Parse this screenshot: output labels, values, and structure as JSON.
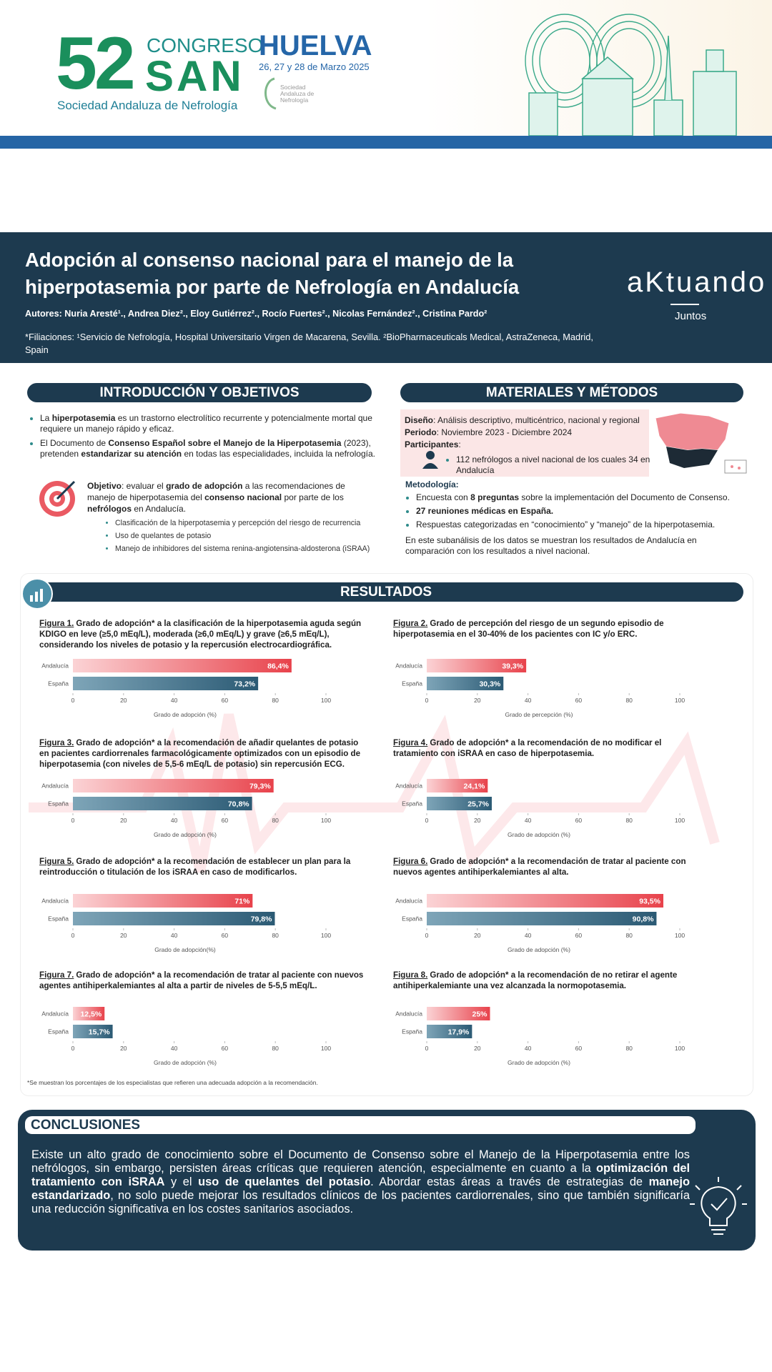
{
  "header": {
    "congress_number": "52",
    "congress_word": "CONGRESO",
    "org": "SAN",
    "org_full": "Sociedad Andaluza de Nefrología",
    "city": "HUELVA",
    "dates": "26, 27 y 28 de Marzo 2025",
    "small_logo": "Sociedad Andaluza de Nefrología"
  },
  "title_block": {
    "title": "Adopción al consenso nacional para el manejo de la hiperpotasemia por parte de Nefrología en Andalucía",
    "authors": "Autores: Nuria Aresté¹., Andrea Diez²., Eloy Gutiérrez²., Rocío Fuertes²., Nicolas Fernández²., Cristina Pardo²",
    "affiliations": "*Filiaciones: ¹Servicio de Nefrología, Hospital Universitario Virgen de Macarena, Sevilla. ²BioPharmaceuticals Medical, AstraZeneca, Madrid, Spain",
    "brand": "aKtuando",
    "brand_sub": "Juntos"
  },
  "intro": {
    "heading": "INTRODUCCIÓN Y OBJETIVOS",
    "bullets": [
      [
        "La ",
        {
          "b": "hiperpotasemia"
        },
        " es un trastorno electrolítico recurrente y potencialmente mortal que requiere un manejo rápido y eficaz."
      ],
      [
        "El Documento de ",
        {
          "b": "Consenso Español sobre el Manejo de la Hiperpotasemia"
        },
        " (2023), pretenden ",
        {
          "b": "estandarizar su atención"
        },
        " en todas las especialidades, incluida la nefrología."
      ]
    ],
    "objective": [
      {
        "b": "Objetivo"
      },
      ": evaluar el ",
      {
        "b": "grado de adopción"
      },
      " a las recomendaciones de manejo de hiperpotasemia del ",
      {
        "b": "consenso nacional"
      },
      " por parte de los ",
      {
        "b": "nefrólogos"
      },
      " en Andalucía."
    ],
    "sub_bullets": [
      "Clasificación de la hiperpotasemia y percepción del riesgo de recurrencia",
      "Uso de quelantes de potasio",
      "Manejo de inhibidores del sistema renina-angiotensina-aldosterona (iSRAA)"
    ]
  },
  "methods": {
    "heading": "MATERIALES Y MÉTODOS",
    "design": [
      {
        "b": "Diseño"
      },
      ": Análisis descriptivo, multicéntrico, nacional y regional"
    ],
    "period": [
      {
        "b": "Periodo"
      },
      ": Noviembre 2023 - Diciembre 2024"
    ],
    "participants": [
      {
        "b": "Participantes"
      },
      ":"
    ],
    "participants_detail": "112 nefrólogos a nivel nacional de los cuales 34 en Andalucía",
    "methodology_heading": "Metodología:",
    "methodology": [
      [
        "Encuesta con ",
        {
          "b": "8 preguntas"
        },
        " sobre la implementación del Documento de Consenso."
      ],
      [
        {
          "b": "27 reuniones médicas en España."
        }
      ],
      [
        "Respuestas categorizadas en “conocimiento” y “manejo” de la hiperpotasemia."
      ]
    ],
    "closing": "En este subanálisis de los datos se muestran los resultados de Andalucía en comparación con los resultados a nivel nacional."
  },
  "results": {
    "heading": "RESULTADOS",
    "footnote": "*Se muestran los porcentajes de los especialistas que refieren una adecuada adopción a la recomendación."
  },
  "figures": [
    {
      "label": "Figura 1.",
      "caption": "Grado de adopción* a la clasificación de la hiperpotasemia aguda según KDIGO en leve (≥5,0 mEq/L), moderada (≥6,0 mEq/L) y grave (≥6,5 mEq/L), considerando los niveles de potasio y la repercusión electrocardiográfica.",
      "chart": {
        "type": "bar",
        "categories": [
          "Andalucía",
          "España"
        ],
        "values": [
          86.4,
          73.2
        ],
        "value_labels": [
          "86,4%",
          "73,2%"
        ],
        "xlim": [
          0,
          100
        ],
        "xticks": [
          0,
          20,
          40,
          60,
          80,
          100
        ],
        "xlabel": "Grado de adopción (%)"
      }
    },
    {
      "label": "Figura 2.",
      "caption": "Grado de percepción del riesgo de un segundo episodio de hiperpotasemia en el 30-40% de los pacientes con IC y/o ERC.",
      "chart": {
        "type": "bar",
        "categories": [
          "Andalucía",
          "España"
        ],
        "values": [
          39.3,
          30.3
        ],
        "value_labels": [
          "39,3%",
          "30,3%"
        ],
        "xlim": [
          0,
          100
        ],
        "xticks": [
          0,
          20,
          40,
          60,
          80,
          100
        ],
        "xlabel": "Grado de percepción (%)"
      }
    },
    {
      "label": "Figura 3.",
      "caption": "Grado de adopción* a la recomendación de añadir quelantes de potasio en pacientes cardiorrenales farmacológicamente optimizados con un episodio de hiperpotasemia (con niveles de 5,5-6 mEq/L de potasio) sin repercusión ECG.",
      "chart": {
        "type": "bar",
        "categories": [
          "Andalucía",
          "España"
        ],
        "values": [
          79.3,
          70.8
        ],
        "value_labels": [
          "79,3%",
          "70,8%"
        ],
        "xlim": [
          0,
          100
        ],
        "xticks": [
          0,
          20,
          40,
          60,
          80,
          100
        ],
        "xlabel": "Grado de adopción (%)"
      }
    },
    {
      "label": "Figura 4.",
      "caption": "Grado de adopción* a la recomendación de no modificar el tratamiento con iSRAA en caso de hiperpotasemia.",
      "chart": {
        "type": "bar",
        "categories": [
          "Andalucía",
          "España"
        ],
        "values": [
          24.1,
          25.7
        ],
        "value_labels": [
          "24,1%",
          "25,7%"
        ],
        "xlim": [
          0,
          100
        ],
        "xticks": [
          0,
          20,
          40,
          60,
          80,
          100
        ],
        "xlabel": "Grado de adopción (%)"
      }
    },
    {
      "label": "Figura 5.",
      "caption": "Grado de adopción* a la recomendación de establecer un plan para la reintroducción o titulación de los iSRAA en caso de modificarlos.",
      "chart": {
        "type": "bar",
        "categories": [
          "Andalucía",
          "España"
        ],
        "values": [
          71,
          79.8
        ],
        "value_labels": [
          "71%",
          "79,8%"
        ],
        "xlim": [
          0,
          100
        ],
        "xticks": [
          0,
          20,
          40,
          60,
          80,
          100
        ],
        "xlabel": "Grado de adopción(%)"
      }
    },
    {
      "label": "Figura 6.",
      "caption": "Grado de adopción* a la recomendación de tratar al paciente con nuevos agentes antihiperkalemiantes al alta.",
      "chart": {
        "type": "bar",
        "categories": [
          "Andalucía",
          "España"
        ],
        "values": [
          93.5,
          90.8
        ],
        "value_labels": [
          "93,5%",
          "90,8%"
        ],
        "xlim": [
          0,
          100
        ],
        "xticks": [
          0,
          20,
          40,
          60,
          80,
          100
        ],
        "xlabel": "Grado de adopción (%)"
      }
    },
    {
      "label": "Figura 7.",
      "caption": "Grado de adopción* a la recomendación de tratar al paciente con nuevos agentes antihiperkalemiantes al alta a partir de niveles de 5-5,5 mEq/L.",
      "chart": {
        "type": "bar",
        "categories": [
          "Andalucía",
          "España"
        ],
        "values": [
          12.5,
          15.7
        ],
        "value_labels": [
          "12,5%",
          "15,7%"
        ],
        "xlim": [
          0,
          100
        ],
        "xticks": [
          0,
          20,
          40,
          60,
          80,
          100
        ],
        "xlabel": "Grado de adopción (%)"
      }
    },
    {
      "label": "Figura 8.",
      "caption": "Grado de adopción* a la recomendación de no retirar el agente antihiperkalemiante una vez alcanzada la normopotasemia.",
      "chart": {
        "type": "bar",
        "categories": [
          "Andalucía",
          "España"
        ],
        "values": [
          25,
          17.9
        ],
        "value_labels": [
          "25%",
          "17,9%"
        ],
        "xlim": [
          0,
          100
        ],
        "xticks": [
          0,
          20,
          40,
          60,
          80,
          100
        ],
        "xlabel": "Grado de adopción (%)"
      }
    }
  ],
  "conclusions": {
    "heading": "CONCLUSIONES",
    "text": [
      "Existe un alto grado de conocimiento sobre el Documento de Consenso sobre el Manejo de la Hiperpotasemia entre los nefrólogos, sin embargo, persisten áreas críticas que requieren atención, especialmente en cuanto a la ",
      {
        "b": "optimización del tratamiento con iSRAA"
      },
      " y el ",
      {
        "b": "uso de quelantes del potasio"
      },
      ". Abordar estas áreas a través de estrategias de ",
      {
        "b": "manejo estandarizado"
      },
      ", no solo puede mejorar los resultados clínicos de los pacientes cardiorrenales, sino que también significaría una reducción significativa en los costes sanitarios asociados."
    ]
  }
}
